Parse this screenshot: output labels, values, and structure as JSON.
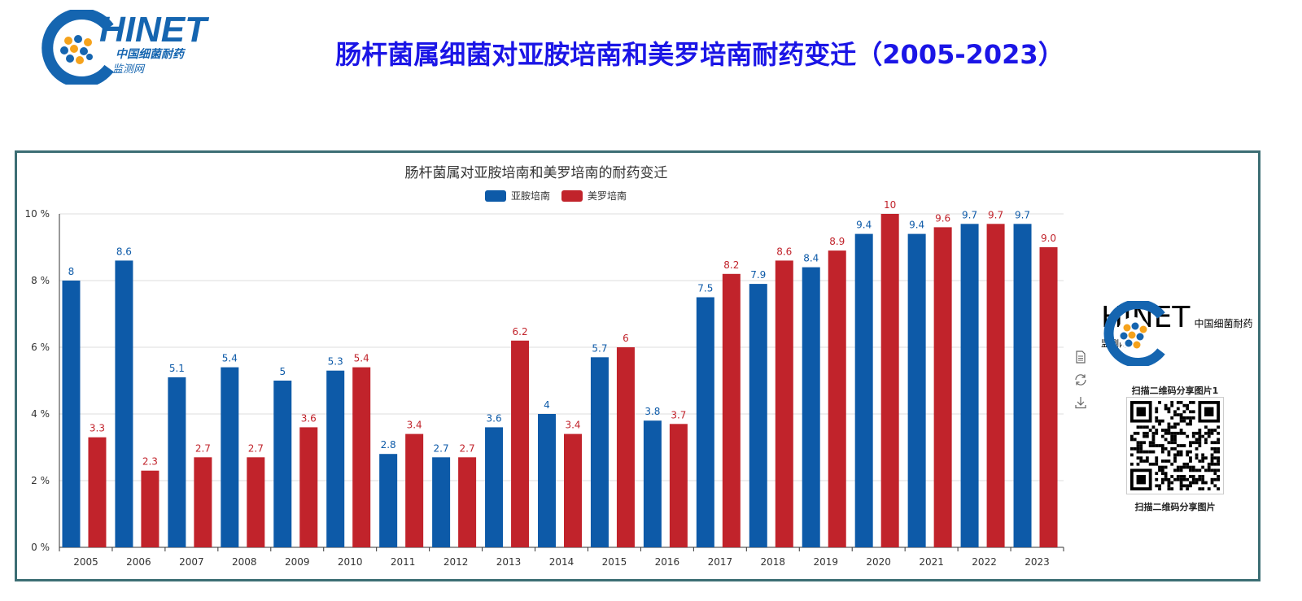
{
  "page": {
    "title": "肠杆菌属细菌对亚胺培南和美罗培南耐药变迁（2005-2023）"
  },
  "logo": {
    "brand": "HINET",
    "cn_name": "中国细菌耐药",
    "cn_sub": "监测网"
  },
  "side_panel": {
    "brand": "HINET",
    "cn_name": "中国细菌耐药",
    "cn_sub": "监测网",
    "qr_caption_top": "扫描二维码分享图片1",
    "qr_caption_bottom": "扫描二维码分享图片"
  },
  "toolbox": {
    "icons": [
      "data-view-icon",
      "restore-icon",
      "download-icon"
    ]
  },
  "colors": {
    "title": "#1b15e6",
    "series_1": "#0d5aa8",
    "series_2": "#c1232b",
    "frame": "#3c6e74"
  },
  "chart_data": {
    "type": "bar",
    "title": "肠杆菌属对亚胺培南和美罗培南的耐药变迁",
    "categories": [
      "2005",
      "2006",
      "2007",
      "2008",
      "2009",
      "2010",
      "2011",
      "2012",
      "2013",
      "2014",
      "2015",
      "2016",
      "2017",
      "2018",
      "2019",
      "2020",
      "2021",
      "2022",
      "2023"
    ],
    "series": [
      {
        "name": "亚胺培南",
        "values": [
          8,
          8.6,
          5.1,
          5.4,
          5,
          5.3,
          2.8,
          2.7,
          3.6,
          4,
          5.7,
          3.8,
          7.5,
          7.9,
          8.4,
          9.4,
          9.4,
          9.7,
          9.7
        ],
        "labels": [
          "8",
          "8.6",
          "5.1",
          "5.4",
          "5",
          "5.3",
          "2.8",
          "2.7",
          "3.6",
          "4",
          "5.7",
          "3.8",
          "7.5",
          "7.9",
          "8.4",
          "9.4",
          "9.4",
          "9.7",
          "9.7"
        ]
      },
      {
        "name": "美罗培南",
        "values": [
          3.3,
          2.3,
          2.7,
          2.7,
          3.6,
          5.4,
          3.4,
          2.7,
          6.2,
          3.4,
          6,
          3.7,
          8.2,
          8.6,
          8.9,
          10,
          9.6,
          9.7,
          9.0
        ],
        "labels": [
          "3.3",
          "2.3",
          "2.7",
          "2.7",
          "3.6",
          "5.4",
          "3.4",
          "2.7",
          "6.2",
          "3.4",
          "6",
          "3.7",
          "8.2",
          "8.6",
          "8.9",
          "10",
          "9.6",
          "9.7",
          "9.0"
        ]
      }
    ],
    "y_ticks": [
      "0 %",
      "2 %",
      "4 %",
      "6 %",
      "8 %",
      "10 %"
    ],
    "ylim": [
      0,
      10
    ],
    "grid": true,
    "legend_position": "top-center"
  }
}
